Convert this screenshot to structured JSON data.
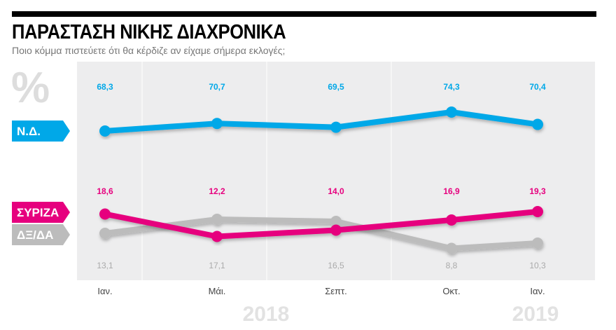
{
  "title": "ΠΑΡΑΣΤΑΣΗ ΝΙΚΗΣ ΔΙΑΧΡΟΝΙΚΑ",
  "subtitle": "Ποιο κόμμα πιστεύετε ότι θα κέρδιζε αν είχαμε σήμερα εκλογές;",
  "unit": "%",
  "chart_data": {
    "type": "line",
    "categories": [
      "Ιαν.",
      "Μάι.",
      "Σεπτ.",
      "Οκτ.",
      "Ιαν."
    ],
    "years": [
      "2018",
      "2019"
    ],
    "series": [
      {
        "name": "Ν.Δ.",
        "color": "#00a8e8",
        "values": [
          68.3,
          70.7,
          69.5,
          74.3,
          70.4
        ],
        "labels": [
          "68,3",
          "70,7",
          "69,5",
          "74,3",
          "70,4"
        ]
      },
      {
        "name": "ΣΥΡΙΖΑ",
        "color": "#e6007e",
        "values": [
          18.6,
          12.2,
          14.0,
          16.9,
          19.3
        ],
        "labels": [
          "18,6",
          "12,2",
          "14,0",
          "16,9",
          "19,3"
        ]
      },
      {
        "name": "ΔΞ/ΔΑ",
        "color": "#bcbcbc",
        "values": [
          13.1,
          17.1,
          16.5,
          8.8,
          10.3
        ],
        "labels": [
          "13,1",
          "17,1",
          "16,5",
          "8,8",
          "10,3"
        ]
      }
    ],
    "grid": false,
    "legend": "left"
  }
}
